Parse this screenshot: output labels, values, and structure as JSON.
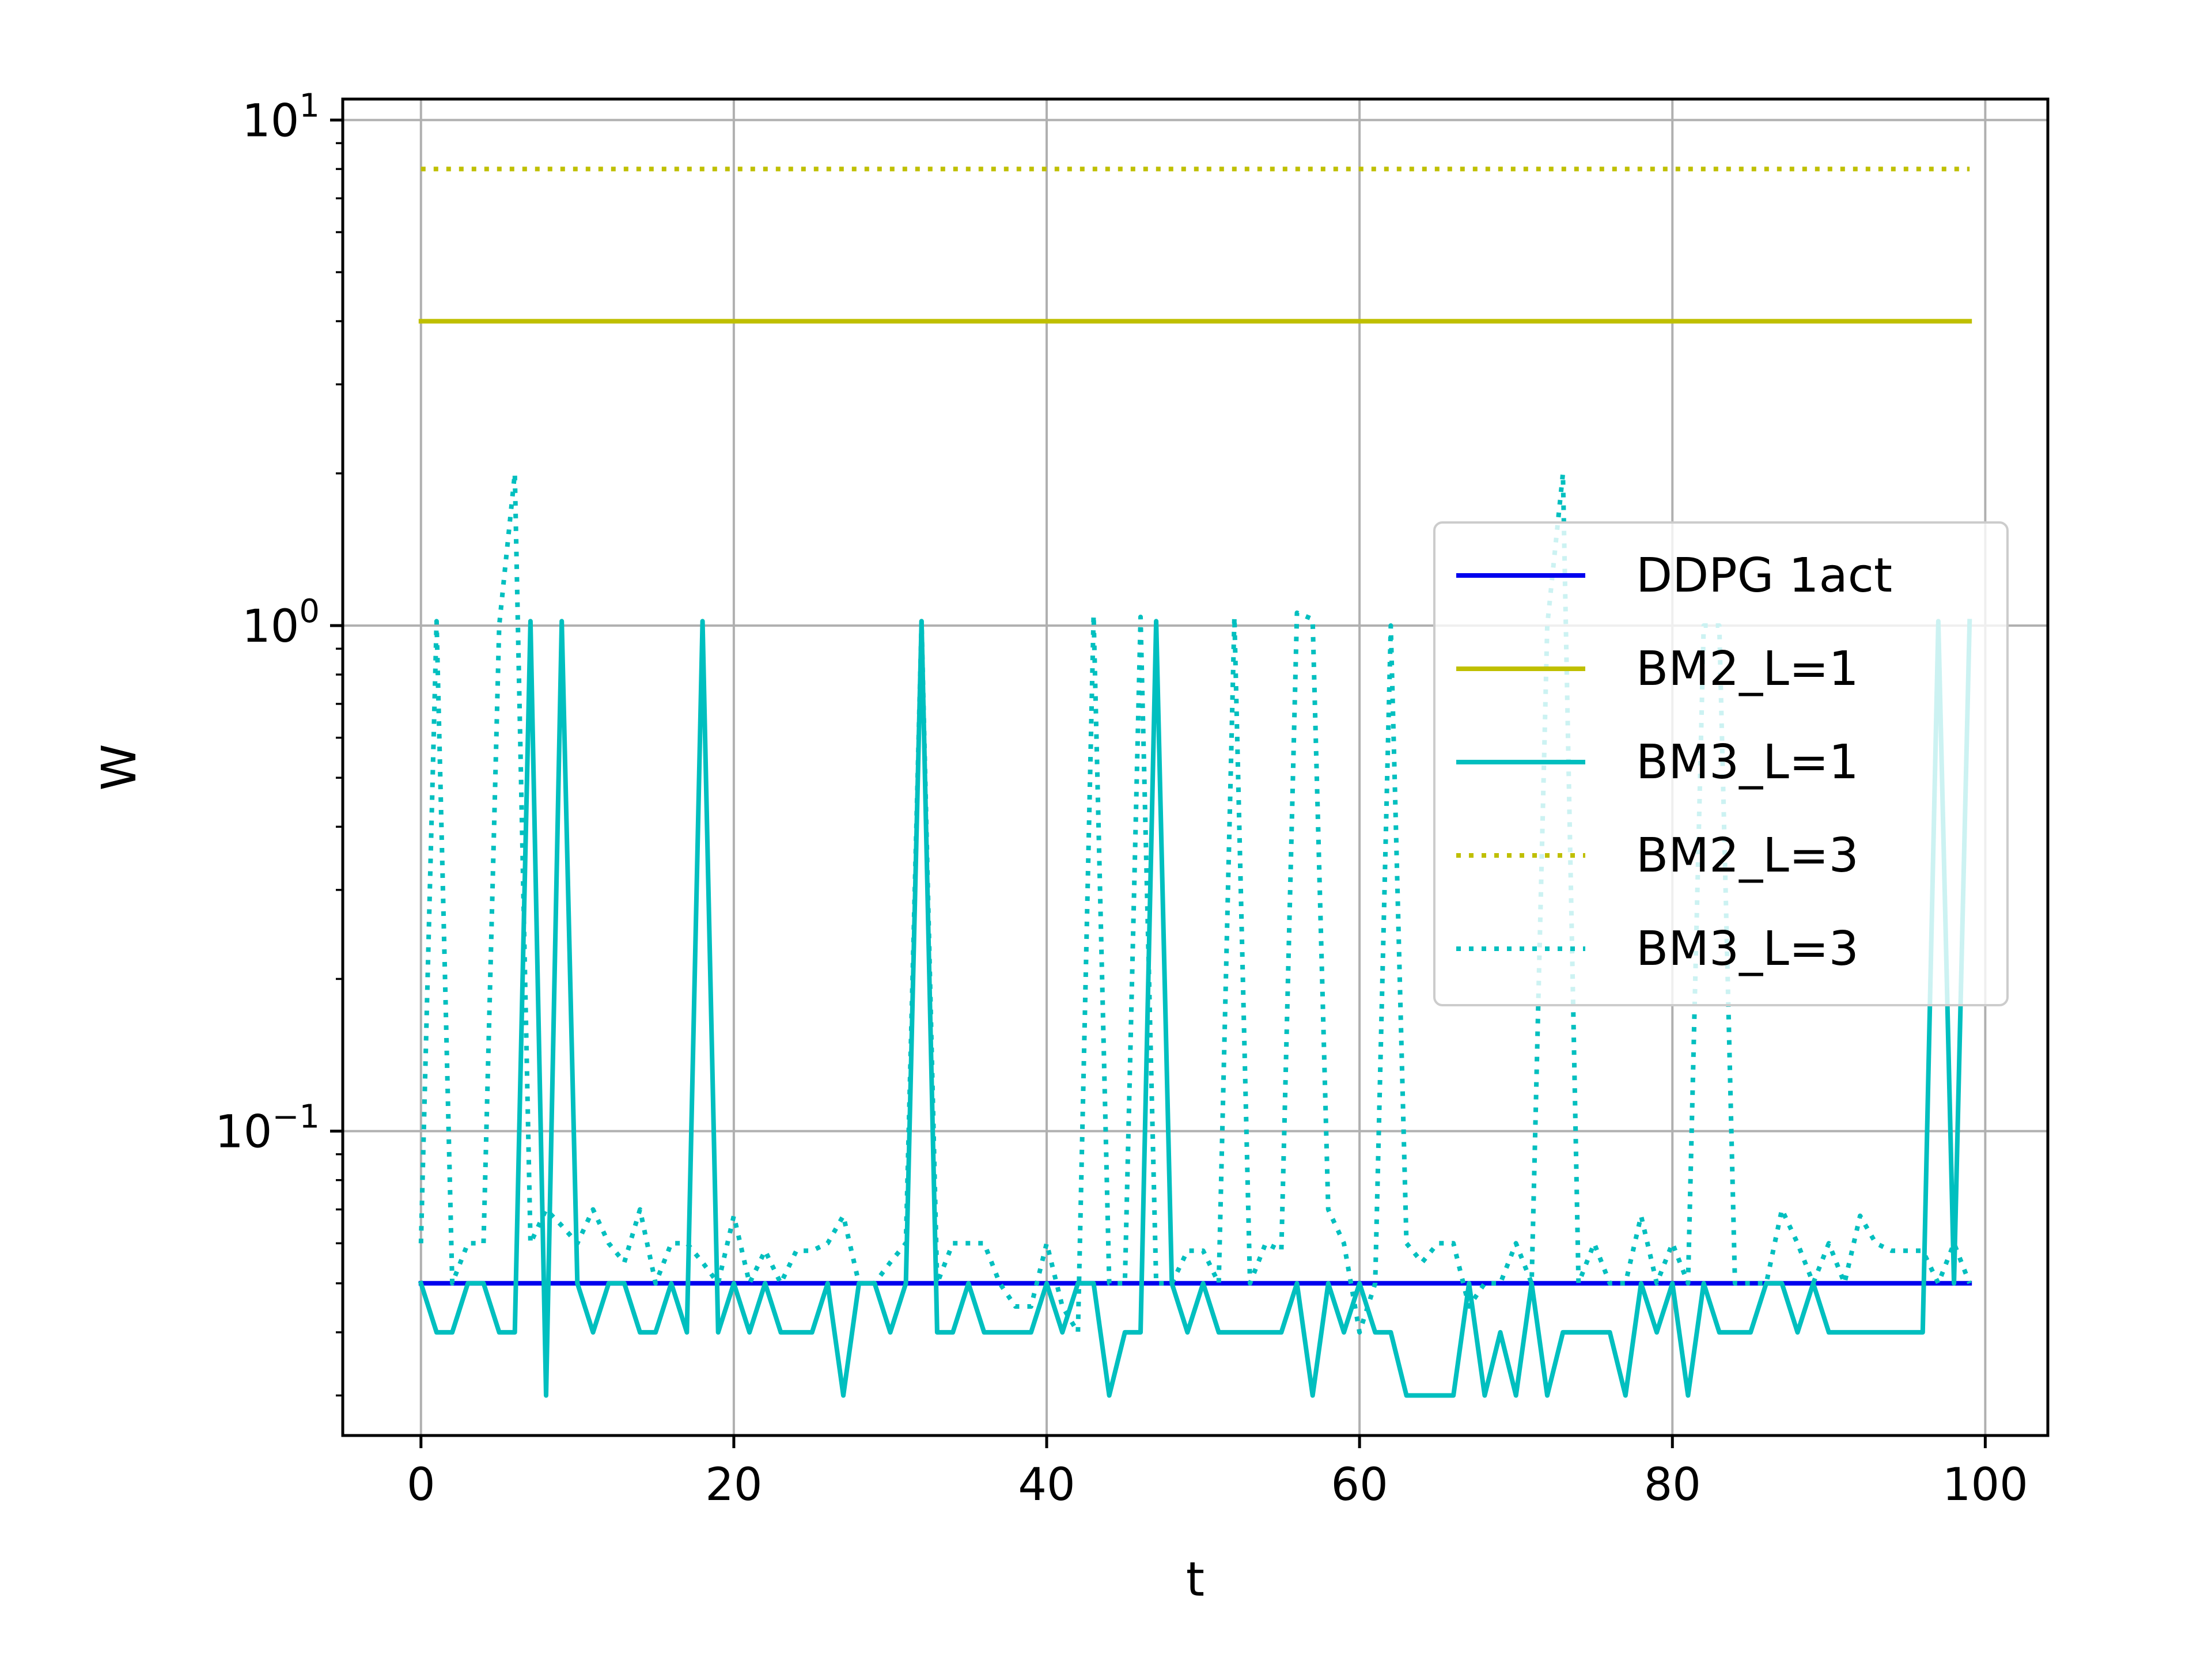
{
  "chart_data": {
    "type": "line",
    "xlabel": "t",
    "ylabel": "W",
    "xlim": [
      -5,
      104
    ],
    "ylim": [
      0.025,
      11
    ],
    "yscale": "log",
    "xticks": [
      0,
      20,
      40,
      60,
      80,
      100
    ],
    "xtick_labels": [
      "0",
      "20",
      "40",
      "60",
      "80",
      "100"
    ],
    "yticks": [
      0.1,
      1,
      10
    ],
    "ytick_labels": [
      {
        "base": "10",
        "exp": "−1"
      },
      {
        "base": "10",
        "exp": "0"
      },
      {
        "base": "10",
        "exp": "1"
      }
    ],
    "grid": true,
    "legend_position": "center-right",
    "series": [
      {
        "name": "DDPG 1act",
        "color": "#0000ee",
        "style": "solid",
        "x": [
          0,
          99
        ],
        "y": [
          0.05,
          0.05
        ]
      },
      {
        "name": "BM2_L=1",
        "color": "#bfbf00",
        "style": "solid",
        "x": [
          0,
          99
        ],
        "y": [
          4,
          4
        ]
      },
      {
        "name": "BM3_L=1",
        "color": "#00bfbf",
        "style": "solid",
        "x": [
          0,
          1,
          2,
          3,
          4,
          5,
          6,
          7,
          8,
          9,
          10,
          11,
          12,
          13,
          14,
          15,
          16,
          17,
          18,
          19,
          20,
          21,
          22,
          23,
          24,
          25,
          26,
          27,
          28,
          29,
          30,
          31,
          32,
          33,
          34,
          35,
          36,
          37,
          38,
          39,
          40,
          41,
          42,
          43,
          44,
          45,
          46,
          47,
          48,
          49,
          50,
          51,
          52,
          53,
          54,
          55,
          56,
          57,
          58,
          59,
          60,
          61,
          62,
          63,
          64,
          65,
          66,
          67,
          68,
          69,
          70,
          71,
          72,
          73,
          74,
          75,
          76,
          77,
          78,
          79,
          80,
          81,
          82,
          83,
          84,
          85,
          86,
          87,
          88,
          89,
          90,
          91,
          92,
          93,
          94,
          95,
          96,
          97,
          98,
          99
        ],
        "y": [
          0.05,
          0.04,
          0.04,
          0.05,
          0.05,
          0.04,
          0.04,
          1.02,
          0.03,
          1.02,
          0.05,
          0.04,
          0.05,
          0.05,
          0.04,
          0.04,
          0.05,
          0.04,
          1.02,
          0.04,
          0.05,
          0.04,
          0.05,
          0.04,
          0.04,
          0.04,
          0.05,
          0.03,
          0.05,
          0.05,
          0.04,
          0.05,
          1.02,
          0.04,
          0.04,
          0.05,
          0.04,
          0.04,
          0.04,
          0.04,
          0.05,
          0.04,
          0.05,
          0.05,
          0.03,
          0.04,
          0.04,
          1.02,
          0.05,
          0.04,
          0.05,
          0.04,
          0.04,
          0.04,
          0.04,
          0.04,
          0.05,
          0.03,
          0.05,
          0.04,
          0.05,
          0.04,
          0.04,
          0.03,
          0.03,
          0.03,
          0.03,
          0.05,
          0.03,
          0.04,
          0.03,
          0.05,
          0.03,
          0.04,
          0.04,
          0.04,
          0.04,
          0.03,
          0.05,
          0.04,
          0.05,
          0.03,
          0.05,
          0.04,
          0.04,
          0.04,
          0.05,
          0.05,
          0.04,
          0.05,
          0.04,
          0.04,
          0.04,
          0.04,
          0.04,
          0.04,
          0.04,
          1.02,
          0.05,
          1.02
        ]
      },
      {
        "name": "BM2_L=3",
        "color": "#bfbf00",
        "style": "dotted",
        "x": [
          0,
          99
        ],
        "y": [
          8,
          8
        ]
      },
      {
        "name": "BM3_L=3",
        "color": "#00bfbf",
        "style": "dotted",
        "x": [
          0,
          1,
          2,
          3,
          4,
          5,
          6,
          7,
          8,
          9,
          10,
          11,
          12,
          13,
          14,
          15,
          16,
          17,
          18,
          19,
          20,
          21,
          22,
          23,
          24,
          25,
          26,
          27,
          28,
          29,
          30,
          31,
          32,
          33,
          34,
          35,
          36,
          37,
          38,
          39,
          40,
          41,
          42,
          43,
          44,
          45,
          46,
          47,
          48,
          49,
          50,
          51,
          52,
          53,
          54,
          55,
          56,
          57,
          58,
          59,
          60,
          61,
          62,
          63,
          64,
          65,
          66,
          67,
          68,
          69,
          70,
          71,
          72,
          73,
          74,
          75,
          76,
          77,
          78,
          79,
          80,
          81,
          82,
          83,
          84,
          85,
          86,
          87,
          88,
          89,
          90,
          91,
          92,
          93,
          94,
          95,
          96,
          97,
          98,
          99
        ],
        "y": [
          0.06,
          1.02,
          0.05,
          0.06,
          0.06,
          1.0,
          2.0,
          0.06,
          0.07,
          0.065,
          0.06,
          0.07,
          0.06,
          0.055,
          0.07,
          0.05,
          0.06,
          0.06,
          0.055,
          0.05,
          0.068,
          0.05,
          0.058,
          0.05,
          0.058,
          0.058,
          0.06,
          0.068,
          0.05,
          0.05,
          0.055,
          0.06,
          1.02,
          0.05,
          0.06,
          0.06,
          0.06,
          0.05,
          0.045,
          0.045,
          0.06,
          0.045,
          0.04,
          1.05,
          0.05,
          0.05,
          1.04,
          0.05,
          0.05,
          0.058,
          0.058,
          0.05,
          1.04,
          0.05,
          0.06,
          0.058,
          1.06,
          1.03,
          0.07,
          0.06,
          0.04,
          0.05,
          1.0,
          0.06,
          0.055,
          0.06,
          0.06,
          0.045,
          0.05,
          0.05,
          0.06,
          0.05,
          1.0,
          2.0,
          0.05,
          0.06,
          0.05,
          0.05,
          0.068,
          0.05,
          0.06,
          0.05,
          1.0,
          1.0,
          0.05,
          0.05,
          0.05,
          0.07,
          0.06,
          0.05,
          0.06,
          0.05,
          0.068,
          0.06,
          0.058,
          0.058,
          0.058,
          0.05,
          0.06,
          0.05
        ]
      }
    ]
  }
}
